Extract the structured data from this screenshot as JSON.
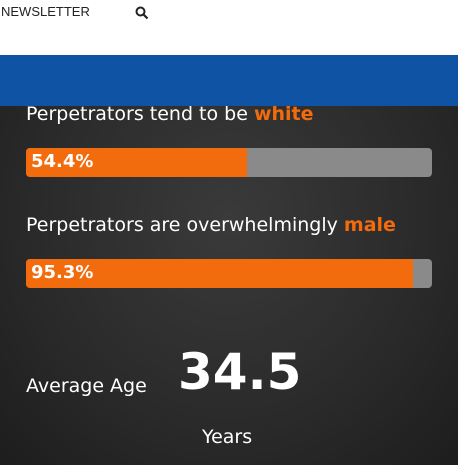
{
  "nav": {
    "link": "NEWSLETTER"
  },
  "stats": {
    "xlim": [
      0,
      100
    ],
    "items": [
      {
        "text": "Perpetrators tend to be",
        "highlight": "white",
        "value": 54.4,
        "value_label": "54.4%"
      },
      {
        "text": "Perpetrators are overwhelmingly",
        "highlight": "male",
        "value": 95.3,
        "value_label": "95.3%"
      }
    ]
  },
  "age": {
    "label": "Average Age",
    "value": "34.5",
    "unit": "Years"
  }
}
